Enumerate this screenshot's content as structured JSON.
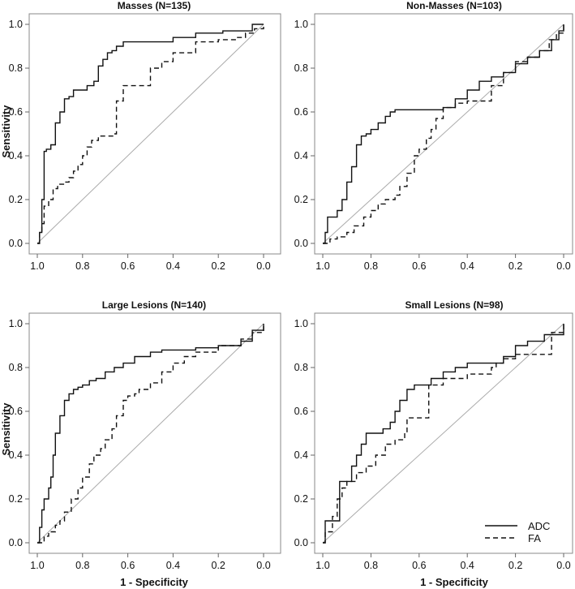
{
  "figure": {
    "xlabel": "1 - Specificity",
    "ylabel": "Sensitivity"
  },
  "legend": {
    "placement": "bottom-right",
    "entries": [
      {
        "name": "ADC",
        "dash": "solid"
      },
      {
        "name": "FA",
        "dash": "dashed"
      }
    ]
  },
  "chart_data": [
    {
      "type": "line",
      "title": "Masses (N=135)",
      "xlabel": "",
      "ylabel": "Sensitivity",
      "xlim": [
        1.0,
        0.0
      ],
      "ylim": [
        0.0,
        1.0
      ],
      "xticks": [
        "1.0",
        "0.8",
        "0.6",
        "0.4",
        "0.2",
        "0.0"
      ],
      "yticks": [
        "0.0",
        "0.2",
        "0.4",
        "0.6",
        "0.8",
        "1.0"
      ],
      "series": [
        {
          "name": "ADC",
          "x": [
            1.0,
            0.99,
            0.98,
            0.97,
            0.96,
            0.94,
            0.92,
            0.9,
            0.88,
            0.86,
            0.84,
            0.8,
            0.78,
            0.75,
            0.73,
            0.71,
            0.69,
            0.67,
            0.65,
            0.62,
            0.6,
            0.58,
            0.55,
            0.4,
            0.3,
            0.25,
            0.18,
            0.12,
            0.05,
            0.0
          ],
          "y": [
            0.0,
            0.05,
            0.2,
            0.42,
            0.43,
            0.45,
            0.55,
            0.6,
            0.66,
            0.67,
            0.7,
            0.7,
            0.72,
            0.74,
            0.81,
            0.84,
            0.87,
            0.88,
            0.9,
            0.92,
            0.92,
            0.92,
            0.92,
            0.94,
            0.96,
            0.96,
            0.97,
            0.97,
            1.0,
            1.0
          ]
        },
        {
          "name": "FA",
          "x": [
            1.0,
            0.99,
            0.98,
            0.97,
            0.95,
            0.93,
            0.91,
            0.88,
            0.86,
            0.84,
            0.82,
            0.8,
            0.78,
            0.76,
            0.73,
            0.66,
            0.65,
            0.62,
            0.55,
            0.5,
            0.45,
            0.4,
            0.3,
            0.2,
            0.12,
            0.08,
            0.04,
            0.0
          ],
          "y": [
            0.0,
            0.05,
            0.09,
            0.17,
            0.2,
            0.25,
            0.27,
            0.28,
            0.3,
            0.33,
            0.36,
            0.4,
            0.44,
            0.47,
            0.49,
            0.5,
            0.65,
            0.72,
            0.72,
            0.8,
            0.83,
            0.87,
            0.92,
            0.93,
            0.94,
            0.96,
            0.98,
            1.0
          ]
        }
      ]
    },
    {
      "type": "line",
      "title": "Non-Masses (N=103)",
      "xlabel": "",
      "ylabel": "",
      "xlim": [
        1.0,
        0.0
      ],
      "ylim": [
        0.0,
        1.0
      ],
      "xticks": [
        "1.0",
        "0.8",
        "0.6",
        "0.4",
        "0.2",
        "0.0"
      ],
      "yticks": [
        "0.0",
        "0.2",
        "0.4",
        "0.6",
        "0.8",
        "1.0"
      ],
      "series": [
        {
          "name": "ADC",
          "x": [
            1.0,
            0.99,
            0.98,
            0.94,
            0.92,
            0.9,
            0.88,
            0.86,
            0.84,
            0.82,
            0.8,
            0.77,
            0.74,
            0.72,
            0.7,
            0.6,
            0.5,
            0.45,
            0.4,
            0.35,
            0.3,
            0.25,
            0.2,
            0.15,
            0.1,
            0.05,
            0.02,
            0.0
          ],
          "y": [
            0.0,
            0.05,
            0.12,
            0.15,
            0.2,
            0.28,
            0.35,
            0.45,
            0.49,
            0.5,
            0.52,
            0.55,
            0.58,
            0.6,
            0.61,
            0.61,
            0.62,
            0.66,
            0.7,
            0.74,
            0.76,
            0.78,
            0.82,
            0.85,
            0.88,
            0.93,
            0.97,
            1.0
          ]
        },
        {
          "name": "FA",
          "x": [
            1.0,
            0.97,
            0.94,
            0.9,
            0.87,
            0.83,
            0.8,
            0.77,
            0.74,
            0.7,
            0.68,
            0.65,
            0.62,
            0.6,
            0.57,
            0.55,
            0.53,
            0.5,
            0.45,
            0.4,
            0.3,
            0.25,
            0.2,
            0.15,
            0.1,
            0.06,
            0.03,
            0.0
          ],
          "y": [
            0.0,
            0.02,
            0.03,
            0.05,
            0.08,
            0.12,
            0.15,
            0.18,
            0.2,
            0.22,
            0.26,
            0.32,
            0.4,
            0.43,
            0.48,
            0.52,
            0.57,
            0.62,
            0.64,
            0.65,
            0.72,
            0.78,
            0.83,
            0.85,
            0.88,
            0.93,
            0.96,
            1.0
          ]
        }
      ]
    },
    {
      "type": "line",
      "title": "Large Lesions (N=140)",
      "xlabel": "1 - Specificity",
      "ylabel": "Sensitivity",
      "xlim": [
        1.0,
        0.0
      ],
      "ylim": [
        0.0,
        1.0
      ],
      "xticks": [
        "1.0",
        "0.8",
        "0.6",
        "0.4",
        "0.2",
        "0.0"
      ],
      "yticks": [
        "0.0",
        "0.2",
        "0.4",
        "0.6",
        "0.8",
        "1.0"
      ],
      "series": [
        {
          "name": "ADC",
          "x": [
            1.0,
            0.99,
            0.98,
            0.97,
            0.95,
            0.94,
            0.93,
            0.92,
            0.9,
            0.88,
            0.86,
            0.84,
            0.82,
            0.8,
            0.77,
            0.74,
            0.7,
            0.66,
            0.62,
            0.57,
            0.5,
            0.45,
            0.4,
            0.3,
            0.2,
            0.1,
            0.05,
            0.0
          ],
          "y": [
            0.0,
            0.07,
            0.15,
            0.2,
            0.25,
            0.3,
            0.4,
            0.5,
            0.58,
            0.65,
            0.68,
            0.7,
            0.71,
            0.72,
            0.74,
            0.75,
            0.78,
            0.8,
            0.82,
            0.85,
            0.87,
            0.88,
            0.88,
            0.89,
            0.9,
            0.92,
            0.97,
            1.0
          ]
        },
        {
          "name": "FA",
          "x": [
            1.0,
            0.97,
            0.95,
            0.92,
            0.9,
            0.88,
            0.85,
            0.82,
            0.8,
            0.77,
            0.75,
            0.72,
            0.7,
            0.67,
            0.65,
            0.62,
            0.6,
            0.57,
            0.55,
            0.5,
            0.45,
            0.4,
            0.35,
            0.3,
            0.2,
            0.1,
            0.05,
            0.0
          ],
          "y": [
            0.0,
            0.03,
            0.05,
            0.08,
            0.1,
            0.14,
            0.2,
            0.25,
            0.3,
            0.36,
            0.4,
            0.43,
            0.47,
            0.52,
            0.58,
            0.65,
            0.67,
            0.68,
            0.7,
            0.73,
            0.78,
            0.82,
            0.85,
            0.87,
            0.9,
            0.93,
            0.96,
            1.0
          ]
        }
      ]
    },
    {
      "type": "line",
      "title": "Small Lesions (N=98)",
      "xlabel": "1 - Specificity",
      "ylabel": "",
      "xlim": [
        1.0,
        0.0
      ],
      "ylim": [
        0.0,
        1.0
      ],
      "xticks": [
        "1.0",
        "0.8",
        "0.6",
        "0.4",
        "0.2",
        "0.0"
      ],
      "yticks": [
        "0.0",
        "0.2",
        "0.4",
        "0.6",
        "0.8",
        "1.0"
      ],
      "series": [
        {
          "name": "ADC",
          "x": [
            1.0,
            0.99,
            0.95,
            0.93,
            0.9,
            0.88,
            0.86,
            0.84,
            0.82,
            0.78,
            0.75,
            0.72,
            0.7,
            0.68,
            0.65,
            0.62,
            0.58,
            0.55,
            0.5,
            0.45,
            0.4,
            0.3,
            0.25,
            0.2,
            0.15,
            0.08,
            0.04,
            0.0
          ],
          "y": [
            0.0,
            0.1,
            0.1,
            0.28,
            0.28,
            0.35,
            0.4,
            0.45,
            0.5,
            0.5,
            0.52,
            0.55,
            0.6,
            0.65,
            0.7,
            0.72,
            0.72,
            0.75,
            0.78,
            0.8,
            0.82,
            0.82,
            0.85,
            0.9,
            0.92,
            0.95,
            0.95,
            1.0
          ]
        },
        {
          "name": "FA",
          "x": [
            1.0,
            0.99,
            0.96,
            0.94,
            0.92,
            0.9,
            0.86,
            0.82,
            0.78,
            0.74,
            0.7,
            0.66,
            0.65,
            0.58,
            0.56,
            0.5,
            0.4,
            0.3,
            0.28,
            0.25,
            0.2,
            0.1,
            0.06,
            0.05,
            0.0
          ],
          "y": [
            0.0,
            0.05,
            0.12,
            0.2,
            0.25,
            0.28,
            0.32,
            0.35,
            0.4,
            0.45,
            0.47,
            0.5,
            0.57,
            0.57,
            0.72,
            0.75,
            0.77,
            0.8,
            0.82,
            0.84,
            0.86,
            0.86,
            0.86,
            0.96,
            1.0
          ]
        }
      ]
    }
  ]
}
